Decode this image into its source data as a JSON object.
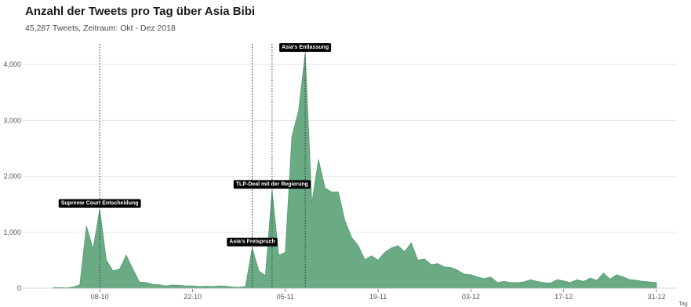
{
  "title": "Anzahl der Tweets pro Tag über Asia Bibi",
  "subtitle": "45,287 Tweets, Zeitraum: Okt - Dez 2018",
  "colors": {
    "area": "#6aab84",
    "area_stroke": "#4f9a6c",
    "grid": "#e6e6e6",
    "annotation_bg": "#000000",
    "annotation_text": "#ffffff"
  },
  "chart_data": {
    "type": "area",
    "xlabel": "Tag",
    "ylabel": "",
    "ylim": [
      0,
      4200
    ],
    "grid": true,
    "y_ticks": [
      0,
      1000,
      2000,
      3000,
      4000
    ],
    "y_tick_labels": [
      "0",
      "1,000",
      "2,000",
      "3,000",
      "4,000"
    ],
    "x_ticks": [
      "2018-10-08",
      "2018-10-22",
      "2018-11-05",
      "2018-11-19",
      "2018-12-03",
      "2018-12-17",
      "2018-12-31"
    ],
    "x_tick_labels": [
      "08-10",
      "22-10",
      "05-11",
      "19-11",
      "03-12",
      "17-12",
      "31-12"
    ],
    "x": [
      "2018-10-01",
      "2018-10-02",
      "2018-10-03",
      "2018-10-04",
      "2018-10-05",
      "2018-10-06",
      "2018-10-07",
      "2018-10-08",
      "2018-10-09",
      "2018-10-10",
      "2018-10-11",
      "2018-10-12",
      "2018-10-13",
      "2018-10-14",
      "2018-10-15",
      "2018-10-16",
      "2018-10-17",
      "2018-10-18",
      "2018-10-19",
      "2018-10-20",
      "2018-10-21",
      "2018-10-22",
      "2018-10-23",
      "2018-10-24",
      "2018-10-25",
      "2018-10-26",
      "2018-10-27",
      "2018-10-28",
      "2018-10-29",
      "2018-10-30",
      "2018-10-31",
      "2018-11-01",
      "2018-11-02",
      "2018-11-03",
      "2018-11-04",
      "2018-11-05",
      "2018-11-06",
      "2018-11-07",
      "2018-11-08",
      "2018-11-09",
      "2018-11-10",
      "2018-11-11",
      "2018-11-12",
      "2018-11-13",
      "2018-11-14",
      "2018-11-15",
      "2018-11-16",
      "2018-11-17",
      "2018-11-18",
      "2018-11-19",
      "2018-11-20",
      "2018-11-21",
      "2018-11-22",
      "2018-11-23",
      "2018-11-24",
      "2018-11-25",
      "2018-11-26",
      "2018-11-27",
      "2018-11-28",
      "2018-11-29",
      "2018-11-30",
      "2018-12-01",
      "2018-12-02",
      "2018-12-03",
      "2018-12-04",
      "2018-12-05",
      "2018-12-06",
      "2018-12-07",
      "2018-12-08",
      "2018-12-09",
      "2018-12-10",
      "2018-12-11",
      "2018-12-12",
      "2018-12-13",
      "2018-12-14",
      "2018-12-15",
      "2018-12-16",
      "2018-12-17",
      "2018-12-18",
      "2018-12-19",
      "2018-12-20",
      "2018-12-21",
      "2018-12-22",
      "2018-12-23",
      "2018-12-24",
      "2018-12-25",
      "2018-12-26",
      "2018-12-27",
      "2018-12-28",
      "2018-12-29",
      "2018-12-30",
      "2018-12-31"
    ],
    "values": [
      10,
      10,
      5,
      20,
      60,
      1110,
      700,
      1410,
      500,
      310,
      340,
      590,
      340,
      110,
      100,
      70,
      60,
      40,
      55,
      50,
      40,
      40,
      30,
      35,
      30,
      40,
      35,
      20,
      15,
      30,
      720,
      310,
      220,
      1750,
      590,
      640,
      2720,
      3170,
      4200,
      1520,
      2300,
      1790,
      1720,
      1720,
      1200,
      910,
      760,
      510,
      580,
      500,
      640,
      720,
      760,
      650,
      810,
      500,
      520,
      420,
      440,
      380,
      370,
      320,
      250,
      240,
      200,
      170,
      200,
      100,
      120,
      100,
      100,
      110,
      150,
      120,
      100,
      90,
      150,
      130,
      100,
      150,
      120,
      180,
      140,
      270,
      160,
      240,
      200,
      150,
      140,
      120,
      110,
      100
    ],
    "annotations": [
      {
        "label": "Supreme Court Entscheidung",
        "x": "2018-10-08",
        "y": 1410
      },
      {
        "label": "Asia's Freispruch",
        "x": "2018-10-31",
        "y": 720
      },
      {
        "label": "TLP-Deal mit der Regierung",
        "x": "2018-11-03",
        "y": 1750
      },
      {
        "label": "Asia's Entlassung",
        "x": "2018-11-08",
        "y": 4200
      }
    ]
  }
}
